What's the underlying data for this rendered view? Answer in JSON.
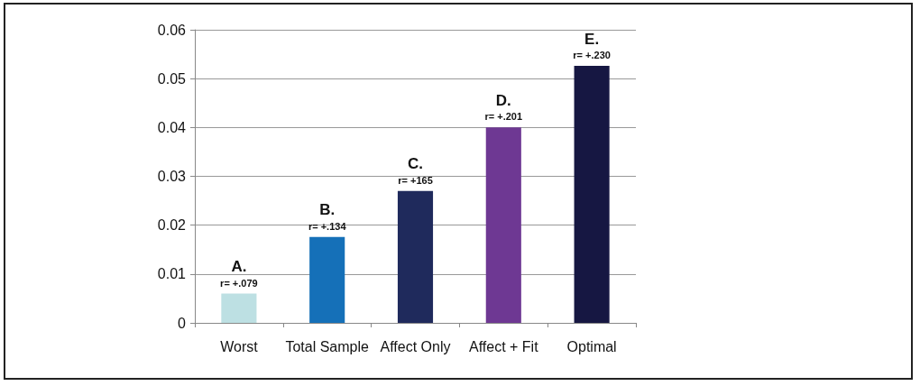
{
  "chart_data": {
    "type": "bar",
    "categories": [
      "Worst",
      "Total Sample",
      "Affect Only",
      "Affect + Fit",
      "Optimal"
    ],
    "values": [
      0.006,
      0.0176,
      0.027,
      0.04,
      0.0526
    ],
    "colors": [
      "#bde0e3",
      "#1570b8",
      "#1f2a5c",
      "#6e3893",
      "#161742"
    ],
    "ylim": [
      0,
      0.06
    ],
    "yticks": [
      0,
      0.01,
      0.02,
      0.03,
      0.04,
      0.05,
      0.06
    ],
    "grid": "y",
    "annotations": [
      {
        "text": "A.\nr= +.079",
        "x": "Worst",
        "y": 0.006
      },
      {
        "text": "B.\nr= +.134",
        "x": "Total Sample",
        "y": 0.0176
      },
      {
        "text": "C.\nr= +165",
        "x": "Affect Only",
        "y": 0.027
      },
      {
        "text": "D.\nr= +.201",
        "x": "Affect + Fit",
        "y": 0.04
      },
      {
        "text": "E.\nr= +.230",
        "x": "Optimal",
        "y": 0.0526
      }
    ]
  }
}
